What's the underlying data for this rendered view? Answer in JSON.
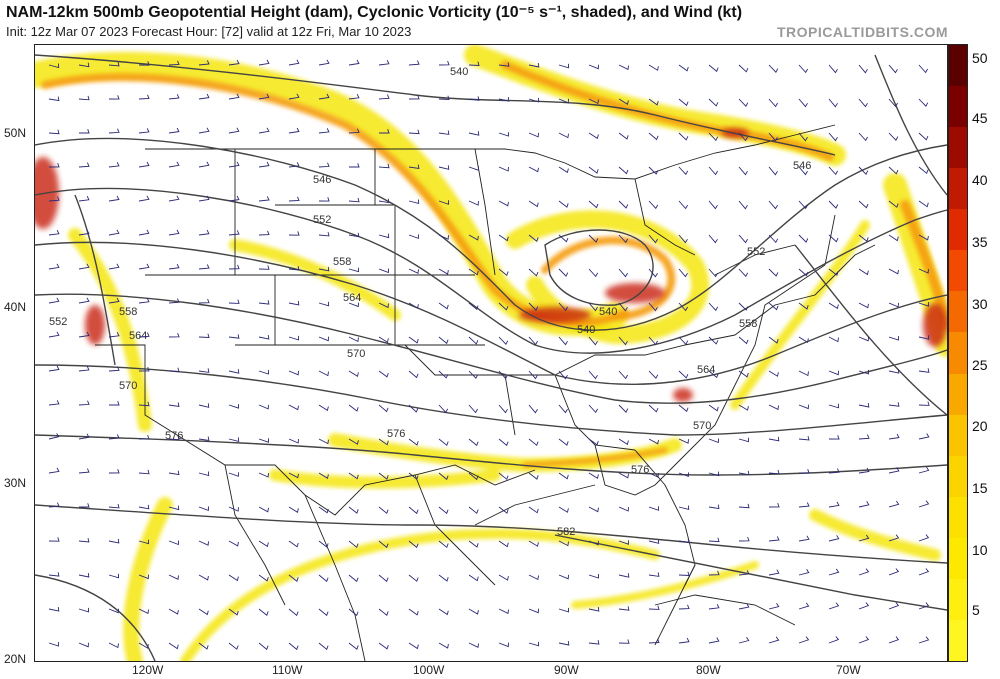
{
  "header": {
    "title": "NAM-12km 500mb Geopotential Height (dam), Cyclonic Vorticity (10⁻⁵ s⁻¹, shaded), and Wind (kt)",
    "subtitle": "Init: 12z Mar 07 2023   Forecast Hour: [72]   valid at 12z Fri, Mar 10 2023",
    "brand": "TROPICALTIDBITS.COM"
  },
  "map": {
    "lat_labels": [
      "50N",
      "40N",
      "30N",
      "20N"
    ],
    "lon_labels": [
      "120W",
      "110W",
      "100W",
      "90W",
      "80W",
      "70W"
    ],
    "contour_labels": [
      "540",
      "546",
      "546",
      "552",
      "552",
      "558",
      "558",
      "558",
      "564",
      "564",
      "564",
      "570",
      "570",
      "570",
      "576",
      "576",
      "576",
      "582",
      "552",
      "540",
      "540"
    ],
    "colors": {
      "contour": "#444444",
      "barb": "#2a2a78",
      "border": "#222222",
      "vorticity_low": "#f5e611",
      "vorticity_mid": "#f59c0c",
      "vorticity_high": "#c81e0a"
    }
  },
  "colorbar": {
    "ticks": [
      "50",
      "45",
      "40",
      "35",
      "30",
      "25",
      "20",
      "15",
      "10",
      "5"
    ],
    "colors": [
      "#5a0000",
      "#7a0000",
      "#9c0a00",
      "#c01a00",
      "#e02a00",
      "#f24a00",
      "#f56a00",
      "#f78a00",
      "#f9a800",
      "#fbc400",
      "#fbd400",
      "#fce100",
      "#fde800",
      "#feef10",
      "#fff520"
    ]
  }
}
